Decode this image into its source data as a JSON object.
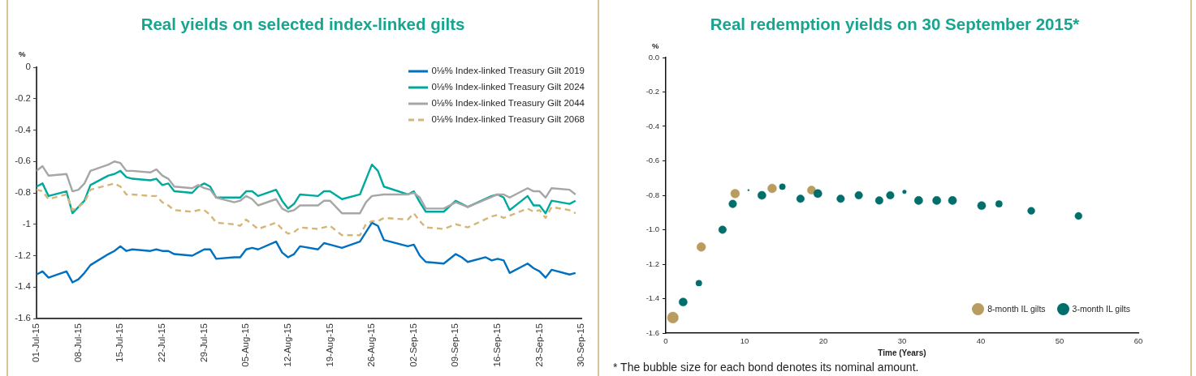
{
  "chart_data": [
    {
      "type": "line",
      "title": "Real yields on selected index-linked gilts",
      "ylabel": "%",
      "xlim": [
        "2015-07-01",
        "2015-09-30"
      ],
      "xticks": [
        {
          "value": "2015-07-01",
          "label": "01-Jul-15"
        },
        {
          "value": "2015-07-08",
          "label": "08-Jul-15"
        },
        {
          "value": "2015-07-15",
          "label": "15-Jul-15"
        },
        {
          "value": "2015-07-22",
          "label": "22-Jul-15"
        },
        {
          "value": "2015-07-29",
          "label": "29-Jul-15"
        },
        {
          "value": "2015-08-05",
          "label": "05-Aug-15"
        },
        {
          "value": "2015-08-12",
          "label": "12-Aug-15"
        },
        {
          "value": "2015-08-19",
          "label": "19-Aug-15"
        },
        {
          "value": "2015-08-26",
          "label": "26-Aug-15"
        },
        {
          "value": "2015-09-02",
          "label": "02-Sep-15"
        },
        {
          "value": "2015-09-09",
          "label": "09-Sep-15"
        },
        {
          "value": "2015-09-16",
          "label": "16-Sep-15"
        },
        {
          "value": "2015-09-23",
          "label": "23-Sep-15"
        },
        {
          "value": "2015-09-30",
          "label": "30-Sep-15"
        }
      ],
      "ylim": [
        -1.6,
        0
      ],
      "yticks": [
        0,
        -0.2,
        -0.4,
        -0.6,
        -0.8,
        -1,
        -1.2,
        -1.4,
        -1.6
      ],
      "legend": "top right",
      "series": [
        {
          "name": "0⅛% Index-linked Treasury Gilt 2019",
          "color": "#0070c0",
          "x": [
            "2015-07-01",
            "2015-07-02",
            "2015-07-03",
            "2015-07-06",
            "2015-07-07",
            "2015-07-08",
            "2015-07-09",
            "2015-07-10",
            "2015-07-13",
            "2015-07-14",
            "2015-07-15",
            "2015-07-16",
            "2015-07-17",
            "2015-07-20",
            "2015-07-21",
            "2015-07-22",
            "2015-07-23",
            "2015-07-24",
            "2015-07-27",
            "2015-07-28",
            "2015-07-29",
            "2015-07-30",
            "2015-07-31",
            "2015-08-03",
            "2015-08-04",
            "2015-08-05",
            "2015-08-06",
            "2015-08-07",
            "2015-08-10",
            "2015-08-11",
            "2015-08-12",
            "2015-08-13",
            "2015-08-14",
            "2015-08-17",
            "2015-08-18",
            "2015-08-19",
            "2015-08-21",
            "2015-08-24",
            "2015-08-26",
            "2015-08-27",
            "2015-08-28",
            "2015-09-01",
            "2015-09-02",
            "2015-09-03",
            "2015-09-04",
            "2015-09-07",
            "2015-09-09",
            "2015-09-10",
            "2015-09-11",
            "2015-09-14",
            "2015-09-15",
            "2015-09-16",
            "2015-09-17",
            "2015-09-18",
            "2015-09-21",
            "2015-09-22",
            "2015-09-23",
            "2015-09-24",
            "2015-09-25",
            "2015-09-28",
            "2015-09-29"
          ],
          "values": [
            -1.32,
            -1.3,
            -1.34,
            -1.3,
            -1.37,
            -1.35,
            -1.31,
            -1.26,
            -1.19,
            -1.17,
            -1.14,
            -1.17,
            -1.16,
            -1.17,
            -1.16,
            -1.17,
            -1.17,
            -1.19,
            -1.2,
            -1.18,
            -1.16,
            -1.16,
            -1.22,
            -1.21,
            -1.21,
            -1.16,
            -1.15,
            -1.16,
            -1.11,
            -1.18,
            -1.21,
            -1.19,
            -1.14,
            -1.16,
            -1.12,
            -1.13,
            -1.15,
            -1.11,
            -0.99,
            -1.01,
            -1.1,
            -1.14,
            -1.13,
            -1.2,
            -1.24,
            -1.25,
            -1.19,
            -1.21,
            -1.24,
            -1.21,
            -1.23,
            -1.22,
            -1.23,
            -1.31,
            -1.25,
            -1.28,
            -1.3,
            -1.34,
            -1.29,
            -1.32,
            -1.31
          ]
        },
        {
          "name": "0⅛% Index-linked Treasury Gilt 2024",
          "color": "#00a99d",
          "x": [
            "2015-07-01",
            "2015-07-02",
            "2015-07-03",
            "2015-07-06",
            "2015-07-07",
            "2015-07-08",
            "2015-07-09",
            "2015-07-10",
            "2015-07-13",
            "2015-07-14",
            "2015-07-15",
            "2015-07-16",
            "2015-07-17",
            "2015-07-20",
            "2015-07-21",
            "2015-07-22",
            "2015-07-23",
            "2015-07-24",
            "2015-07-27",
            "2015-07-28",
            "2015-07-29",
            "2015-07-30",
            "2015-07-31",
            "2015-08-03",
            "2015-08-04",
            "2015-08-05",
            "2015-08-06",
            "2015-08-07",
            "2015-08-10",
            "2015-08-11",
            "2015-08-12",
            "2015-08-13",
            "2015-08-14",
            "2015-08-17",
            "2015-08-18",
            "2015-08-19",
            "2015-08-21",
            "2015-08-24",
            "2015-08-26",
            "2015-08-27",
            "2015-08-28",
            "2015-09-01",
            "2015-09-02",
            "2015-09-03",
            "2015-09-04",
            "2015-09-07",
            "2015-09-09",
            "2015-09-11",
            "2015-09-15",
            "2015-09-16",
            "2015-09-17",
            "2015-09-18",
            "2015-09-21",
            "2015-09-22",
            "2015-09-23",
            "2015-09-24",
            "2015-09-25",
            "2015-09-28",
            "2015-09-29"
          ],
          "values": [
            -0.76,
            -0.74,
            -0.82,
            -0.79,
            -0.93,
            -0.89,
            -0.85,
            -0.75,
            -0.69,
            -0.68,
            -0.66,
            -0.7,
            -0.71,
            -0.72,
            -0.71,
            -0.75,
            -0.74,
            -0.79,
            -0.8,
            -0.76,
            -0.74,
            -0.76,
            -0.83,
            -0.83,
            -0.83,
            -0.79,
            -0.79,
            -0.82,
            -0.78,
            -0.85,
            -0.9,
            -0.87,
            -0.81,
            -0.82,
            -0.79,
            -0.79,
            -0.84,
            -0.81,
            -0.62,
            -0.66,
            -0.76,
            -0.81,
            -0.79,
            -0.86,
            -0.92,
            -0.92,
            -0.85,
            -0.89,
            -0.82,
            -0.81,
            -0.83,
            -0.91,
            -0.82,
            -0.88,
            -0.88,
            -0.93,
            -0.85,
            -0.87,
            -0.85
          ]
        },
        {
          "name": "0⅛% Index-linked Treasury Gilt 2044",
          "color": "#a6a6a6",
          "x": [
            "2015-07-01",
            "2015-07-02",
            "2015-07-03",
            "2015-07-06",
            "2015-07-07",
            "2015-07-08",
            "2015-07-09",
            "2015-07-10",
            "2015-07-13",
            "2015-07-14",
            "2015-07-15",
            "2015-07-16",
            "2015-07-17",
            "2015-07-20",
            "2015-07-21",
            "2015-07-22",
            "2015-07-23",
            "2015-07-24",
            "2015-07-27",
            "2015-07-28",
            "2015-07-29",
            "2015-07-30",
            "2015-07-31",
            "2015-08-03",
            "2015-08-04",
            "2015-08-05",
            "2015-08-06",
            "2015-08-07",
            "2015-08-10",
            "2015-08-11",
            "2015-08-12",
            "2015-08-13",
            "2015-08-14",
            "2015-08-17",
            "2015-08-18",
            "2015-08-19",
            "2015-08-21",
            "2015-08-24",
            "2015-08-25",
            "2015-08-26",
            "2015-08-28",
            "2015-09-01",
            "2015-09-02",
            "2015-09-03",
            "2015-09-04",
            "2015-09-07",
            "2015-09-09",
            "2015-09-11",
            "2015-09-16",
            "2015-09-17",
            "2015-09-18",
            "2015-09-21",
            "2015-09-22",
            "2015-09-23",
            "2015-09-24",
            "2015-09-25",
            "2015-09-28",
            "2015-09-29"
          ],
          "values": [
            -0.66,
            -0.63,
            -0.69,
            -0.68,
            -0.79,
            -0.78,
            -0.74,
            -0.66,
            -0.62,
            -0.6,
            -0.61,
            -0.66,
            -0.66,
            -0.67,
            -0.65,
            -0.69,
            -0.71,
            -0.76,
            -0.77,
            -0.75,
            -0.77,
            -0.78,
            -0.83,
            -0.86,
            -0.85,
            -0.82,
            -0.84,
            -0.88,
            -0.84,
            -0.9,
            -0.92,
            -0.91,
            -0.88,
            -0.88,
            -0.85,
            -0.85,
            -0.93,
            -0.93,
            -0.86,
            -0.82,
            -0.81,
            -0.81,
            -0.8,
            -0.83,
            -0.9,
            -0.9,
            -0.86,
            -0.89,
            -0.81,
            -0.81,
            -0.83,
            -0.77,
            -0.79,
            -0.79,
            -0.83,
            -0.77,
            -0.78,
            -0.81
          ]
        },
        {
          "name": "0⅛% Index-linked Treasury Gilt 2068",
          "color": "#d6b676",
          "line_style": "dashed",
          "x": [
            "2015-07-01",
            "2015-07-02",
            "2015-07-03",
            "2015-07-06",
            "2015-07-07",
            "2015-07-08",
            "2015-07-09",
            "2015-07-10",
            "2015-07-13",
            "2015-07-14",
            "2015-07-15",
            "2015-07-16",
            "2015-07-17",
            "2015-07-20",
            "2015-07-21",
            "2015-07-22",
            "2015-07-23",
            "2015-07-24",
            "2015-07-27",
            "2015-07-28",
            "2015-07-29",
            "2015-07-30",
            "2015-07-31",
            "2015-08-03",
            "2015-08-04",
            "2015-08-05",
            "2015-08-06",
            "2015-08-07",
            "2015-08-10",
            "2015-08-11",
            "2015-08-12",
            "2015-08-13",
            "2015-08-14",
            "2015-08-17",
            "2015-08-18",
            "2015-08-19",
            "2015-08-21",
            "2015-08-24",
            "2015-08-25",
            "2015-08-26",
            "2015-08-27",
            "2015-08-28",
            "2015-09-01",
            "2015-09-02",
            "2015-09-03",
            "2015-09-04",
            "2015-09-07",
            "2015-09-09",
            "2015-09-11",
            "2015-09-15",
            "2015-09-16",
            "2015-09-17",
            "2015-09-21",
            "2015-09-22",
            "2015-09-23",
            "2015-09-24",
            "2015-09-25",
            "2015-09-28",
            "2015-09-29"
          ],
          "values": [
            -0.78,
            -0.79,
            -0.84,
            -0.81,
            -0.91,
            -0.89,
            -0.86,
            -0.78,
            -0.75,
            -0.74,
            -0.76,
            -0.81,
            -0.81,
            -0.82,
            -0.82,
            -0.86,
            -0.88,
            -0.91,
            -0.92,
            -0.91,
            -0.91,
            -0.94,
            -0.99,
            -1,
            -1.01,
            -0.97,
            -1,
            -1.03,
            -0.99,
            -1.03,
            -1.06,
            -1.05,
            -1.02,
            -1.03,
            -1.02,
            -1.01,
            -1.07,
            -1.07,
            -1,
            -0.98,
            -0.98,
            -0.96,
            -0.97,
            -0.93,
            -0.98,
            -1.02,
            -1.03,
            -1,
            -1.02,
            -0.95,
            -0.94,
            -0.96,
            -0.9,
            -0.92,
            -0.91,
            -0.96,
            -0.89,
            -0.91,
            -0.93
          ]
        }
      ]
    },
    {
      "type": "bubble",
      "title": "Real redemption yields on 30 September 2015*",
      "xlabel": "Time (Years)",
      "ylabel": "%",
      "xlim": [
        0,
        60
      ],
      "xticks": [
        0,
        10,
        20,
        30,
        40,
        50,
        60
      ],
      "ylim": [
        -1.6,
        0
      ],
      "yticks": [
        {
          "value": 0,
          "label": "0.0"
        },
        -0.2,
        -0.4,
        -0.6,
        -0.8,
        {
          "value": -1,
          "label": "-1.0"
        },
        -1.2,
        -1.4,
        -1.6
      ],
      "legend": "bottom right",
      "annotations": [
        "* The bubble size for each bond denotes its nominal amount."
      ],
      "series": [
        {
          "name": "8-month IL gilts",
          "color": "#b99c5f",
          "x": [
            0.9,
            4.5,
            8.8,
            13.5,
            18.5
          ],
          "values": [
            -1.51,
            -1.1,
            -0.79,
            -0.76,
            -0.77
          ],
          "sizes": [
            1,
            0.64,
            0.64,
            0.64,
            0.56
          ]
        },
        {
          "name": "3-month IL gilts",
          "color": "#006e6b",
          "x": [
            2.2,
            4.2,
            7.2,
            8.5,
            10.5,
            12.2,
            14.8,
            17.1,
            19.3,
            22.2,
            24.5,
            27.1,
            28.5,
            30.3,
            32.1,
            34.4,
            36.4,
            40.1,
            42.3,
            46.4,
            52.4
          ],
          "values": [
            -1.42,
            -1.31,
            -1,
            -0.85,
            -0.77,
            -0.8,
            -0.75,
            -0.82,
            -0.79,
            -0.82,
            -0.8,
            -0.83,
            -0.8,
            -0.78,
            -0.83,
            -0.83,
            -0.83,
            -0.86,
            -0.85,
            -0.89,
            -0.92
          ],
          "sizes": [
            0.56,
            0.3,
            0.49,
            0.49,
            0.02,
            0.56,
            0.3,
            0.49,
            0.56,
            0.49,
            0.49,
            0.49,
            0.49,
            0.12,
            0.56,
            0.56,
            0.56,
            0.56,
            0.36,
            0.42,
            0.42
          ]
        }
      ]
    }
  ]
}
